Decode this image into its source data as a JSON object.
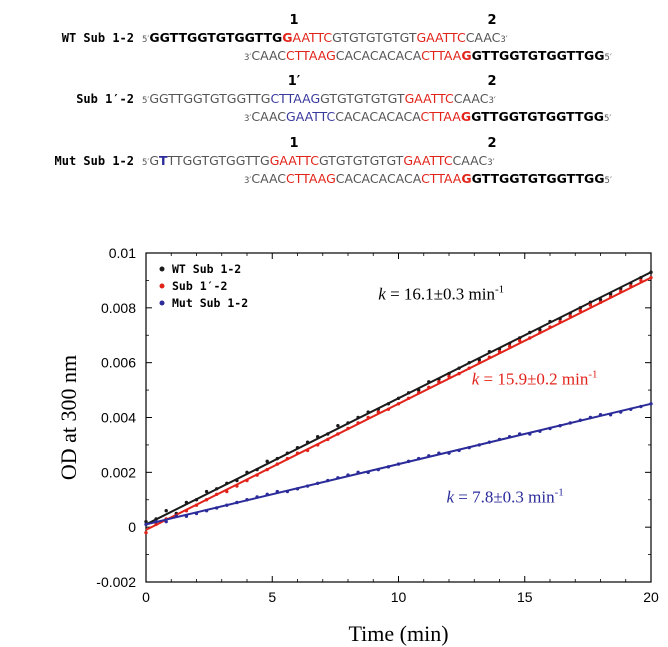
{
  "sequences": [
    {
      "label": "WT Sub 1-2",
      "site1": "1",
      "site2": "2",
      "top": [
        {
          "t": "5′",
          "s": "prime"
        },
        {
          "t": "GGTTGGTGTGGTTG",
          "s": "b"
        },
        {
          "t": "G",
          "s": "rb"
        },
        {
          "t": "AATTC",
          "s": "red"
        },
        {
          "t": "GTGTGTGTGT",
          "s": ""
        },
        {
          "t": "GAATTC",
          "s": "red"
        },
        {
          "t": "CAAC",
          "s": ""
        },
        {
          "t": "3′",
          "s": "prime"
        }
      ],
      "bottom": [
        {
          "t": "3′",
          "s": "prime"
        },
        {
          "t": "CAAC",
          "s": ""
        },
        {
          "t": "CTTAAG",
          "s": "red"
        },
        {
          "t": "CACACACACA",
          "s": ""
        },
        {
          "t": "CTTAA",
          "s": "red"
        },
        {
          "t": "G",
          "s": "rb"
        },
        {
          "t": "GTTGGTGTGGTTGG",
          "s": "b"
        },
        {
          "t": "5′",
          "s": "prime"
        }
      ]
    },
    {
      "label": "Sub 1′-2",
      "site1": "1′",
      "site2": "2",
      "top": [
        {
          "t": "5′",
          "s": "prime"
        },
        {
          "t": "GGTTGGTGTGGTTG",
          "s": ""
        },
        {
          "t": "CTTAAG",
          "s": "blue"
        },
        {
          "t": "GTGTGTGTGT",
          "s": ""
        },
        {
          "t": "GAATTC",
          "s": "red"
        },
        {
          "t": "CAAC",
          "s": ""
        },
        {
          "t": "3′",
          "s": "prime"
        }
      ],
      "bottom": [
        {
          "t": "3′",
          "s": "prime"
        },
        {
          "t": "CAAC",
          "s": ""
        },
        {
          "t": "GAATTC",
          "s": "blue"
        },
        {
          "t": "CACACACACA",
          "s": ""
        },
        {
          "t": "CTTAA",
          "s": "red"
        },
        {
          "t": "G",
          "s": "rb"
        },
        {
          "t": "GTTGGTGTGGTTGG",
          "s": "b"
        },
        {
          "t": "5′",
          "s": "prime"
        }
      ]
    },
    {
      "label": "Mut Sub 1-2",
      "site1": "1",
      "site2": "2",
      "top": [
        {
          "t": "5′",
          "s": "prime"
        },
        {
          "t": "G",
          "s": ""
        },
        {
          "t": "T",
          "s": "bb"
        },
        {
          "t": "TTGGTGTGGTTG",
          "s": ""
        },
        {
          "t": "GAATTC",
          "s": "red"
        },
        {
          "t": "GTGTGTGTGT",
          "s": ""
        },
        {
          "t": "GAATTC",
          "s": "red"
        },
        {
          "t": "CAAC",
          "s": ""
        },
        {
          "t": "3′",
          "s": "prime"
        }
      ],
      "bottom": [
        {
          "t": "3′",
          "s": "prime"
        },
        {
          "t": "CAAC",
          "s": ""
        },
        {
          "t": "CTTAAG",
          "s": "red"
        },
        {
          "t": "CACACACACA",
          "s": ""
        },
        {
          "t": "CTTAA",
          "s": "red"
        },
        {
          "t": "G",
          "s": "rb"
        },
        {
          "t": "GTTGGTGTGGTTGG",
          "s": "b"
        },
        {
          "t": "5′",
          "s": "prime"
        }
      ]
    }
  ],
  "chart_data": {
    "type": "scatter",
    "xlabel": "Time (min)",
    "ylabel": "OD at 300 nm",
    "xlim": [
      0,
      20
    ],
    "ylim": [
      -0.002,
      0.01
    ],
    "xticks": [
      0,
      5,
      10,
      15,
      20
    ],
    "yticks": [
      -0.002,
      0,
      0.002,
      0.004,
      0.006,
      0.008,
      0.01
    ],
    "ytick_labels": [
      "-0.002",
      "0",
      "0.002",
      "0.004",
      "0.006",
      "0.008",
      "0.01"
    ],
    "grid": false,
    "legend_position": "top-left",
    "series": [
      {
        "name": "WT Sub 1-2",
        "color": "#1a1a1a",
        "fit": {
          "x0": 0,
          "y0": 0.0001,
          "x1": 20,
          "y1": 0.0093
        },
        "annotation": {
          "prefix": "k",
          "text": " = 16.1±0.3 min",
          "sup": "-1",
          "color": "#000000",
          "x": 9.2,
          "y": 0.0083
        },
        "points": [
          [
            0.0,
            0.0002
          ],
          [
            0.4,
            0.0003
          ],
          [
            0.8,
            0.0006
          ],
          [
            1.2,
            0.0005
          ],
          [
            1.6,
            0.0009
          ],
          [
            2.0,
            0.001
          ],
          [
            2.4,
            0.0013
          ],
          [
            2.8,
            0.0014
          ],
          [
            3.2,
            0.0016
          ],
          [
            3.6,
            0.0017
          ],
          [
            4.0,
            0.002
          ],
          [
            4.4,
            0.0021
          ],
          [
            4.8,
            0.0024
          ],
          [
            5.2,
            0.0025
          ],
          [
            5.6,
            0.0027
          ],
          [
            6.0,
            0.0029
          ],
          [
            6.4,
            0.0031
          ],
          [
            6.8,
            0.0033
          ],
          [
            7.2,
            0.0034
          ],
          [
            7.6,
            0.0037
          ],
          [
            8.0,
            0.0038
          ],
          [
            8.4,
            0.004
          ],
          [
            8.8,
            0.0042
          ],
          [
            9.2,
            0.0043
          ],
          [
            9.6,
            0.0045
          ],
          [
            10.0,
            0.0047
          ],
          [
            10.4,
            0.0049
          ],
          [
            10.8,
            0.005
          ],
          [
            11.2,
            0.0053
          ],
          [
            11.6,
            0.0054
          ],
          [
            12.0,
            0.0056
          ],
          [
            12.4,
            0.0058
          ],
          [
            12.8,
            0.006
          ],
          [
            13.2,
            0.0061
          ],
          [
            13.6,
            0.0064
          ],
          [
            14.0,
            0.0065
          ],
          [
            14.4,
            0.0067
          ],
          [
            14.8,
            0.0069
          ],
          [
            15.2,
            0.0071
          ],
          [
            15.6,
            0.0072
          ],
          [
            16.0,
            0.0075
          ],
          [
            16.4,
            0.0076
          ],
          [
            16.8,
            0.0078
          ],
          [
            17.2,
            0.008
          ],
          [
            17.6,
            0.0082
          ],
          [
            18.0,
            0.0083
          ],
          [
            18.4,
            0.0085
          ],
          [
            18.8,
            0.0087
          ],
          [
            19.2,
            0.0089
          ],
          [
            19.6,
            0.0091
          ],
          [
            20.0,
            0.0093
          ]
        ]
      },
      {
        "name": "Sub 1′-2",
        "color": "#e2231a",
        "fit": {
          "x0": 0,
          "y0": -0.0001,
          "x1": 20,
          "y1": 0.0091
        },
        "annotation": {
          "prefix": "k",
          "text": " = 15.9±0.2 min",
          "sup": "-1",
          "color": "#e2231a",
          "x": 12.9,
          "y": 0.0052
        },
        "points": [
          [
            0.0,
            -0.0002
          ],
          [
            0.4,
            0.0001
          ],
          [
            0.8,
            0.0003
          ],
          [
            1.2,
            0.0004
          ],
          [
            1.6,
            0.0006
          ],
          [
            2.0,
            0.0008
          ],
          [
            2.4,
            0.001
          ],
          [
            2.8,
            0.0012
          ],
          [
            3.2,
            0.0013
          ],
          [
            3.6,
            0.0015
          ],
          [
            4.0,
            0.0017
          ],
          [
            4.4,
            0.0019
          ],
          [
            4.8,
            0.0021
          ],
          [
            5.2,
            0.0023
          ],
          [
            5.6,
            0.0025
          ],
          [
            6.0,
            0.0027
          ],
          [
            6.4,
            0.0028
          ],
          [
            6.8,
            0.003
          ],
          [
            7.2,
            0.0032
          ],
          [
            7.6,
            0.0034
          ],
          [
            8.0,
            0.0036
          ],
          [
            8.4,
            0.0038
          ],
          [
            8.8,
            0.004
          ],
          [
            9.2,
            0.0042
          ],
          [
            9.6,
            0.0043
          ],
          [
            10.0,
            0.0045
          ],
          [
            10.4,
            0.0047
          ],
          [
            10.8,
            0.0049
          ],
          [
            11.2,
            0.0051
          ],
          [
            11.6,
            0.0053
          ],
          [
            12.0,
            0.0055
          ],
          [
            12.4,
            0.0056
          ],
          [
            12.8,
            0.0058
          ],
          [
            13.2,
            0.006
          ],
          [
            13.6,
            0.0062
          ],
          [
            14.0,
            0.0064
          ],
          [
            14.4,
            0.0066
          ],
          [
            14.8,
            0.0068
          ],
          [
            15.2,
            0.0069
          ],
          [
            15.6,
            0.0071
          ],
          [
            16.0,
            0.0073
          ],
          [
            16.4,
            0.0075
          ],
          [
            16.8,
            0.0077
          ],
          [
            17.2,
            0.0079
          ],
          [
            17.6,
            0.0081
          ],
          [
            18.0,
            0.0082
          ],
          [
            18.4,
            0.0084
          ],
          [
            18.8,
            0.0086
          ],
          [
            19.2,
            0.0088
          ],
          [
            19.6,
            0.009
          ],
          [
            20.0,
            0.0091
          ]
        ]
      },
      {
        "name": "Mut Sub 1-2",
        "color": "#2b2b9a",
        "fit": {
          "x0": 0,
          "y0": 0.0001,
          "x1": 20,
          "y1": 0.0045
        },
        "annotation": {
          "prefix": "k",
          "text": " = 7.8±0.3 min",
          "sup": "-1",
          "color": "#2b2b9a",
          "x": 11.9,
          "y": 0.0009
        },
        "points": [
          [
            0.0,
            0.0001
          ],
          [
            0.4,
            0.0002
          ],
          [
            0.8,
            0.0002
          ],
          [
            1.2,
            0.0004
          ],
          [
            1.6,
            0.0004
          ],
          [
            2.0,
            0.0005
          ],
          [
            2.4,
            0.0006
          ],
          [
            2.8,
            0.0007
          ],
          [
            3.2,
            0.0008
          ],
          [
            3.6,
            0.0009
          ],
          [
            4.0,
            0.001
          ],
          [
            4.4,
            0.0011
          ],
          [
            4.8,
            0.0012
          ],
          [
            5.2,
            0.0013
          ],
          [
            5.6,
            0.0013
          ],
          [
            6.0,
            0.0014
          ],
          [
            6.4,
            0.0015
          ],
          [
            6.8,
            0.0016
          ],
          [
            7.2,
            0.0017
          ],
          [
            7.6,
            0.0018
          ],
          [
            8.0,
            0.0019
          ],
          [
            8.4,
            0.002
          ],
          [
            8.8,
            0.002
          ],
          [
            9.2,
            0.0021
          ],
          [
            9.6,
            0.0022
          ],
          [
            10.0,
            0.0023
          ],
          [
            10.4,
            0.0024
          ],
          [
            10.8,
            0.0025
          ],
          [
            11.2,
            0.0026
          ],
          [
            11.6,
            0.0027
          ],
          [
            12.0,
            0.0027
          ],
          [
            12.4,
            0.0028
          ],
          [
            12.8,
            0.0029
          ],
          [
            13.2,
            0.003
          ],
          [
            13.6,
            0.0031
          ],
          [
            14.0,
            0.0032
          ],
          [
            14.4,
            0.0033
          ],
          [
            14.8,
            0.0034
          ],
          [
            15.2,
            0.0034
          ],
          [
            15.6,
            0.0035
          ],
          [
            16.0,
            0.0036
          ],
          [
            16.4,
            0.0037
          ],
          [
            16.8,
            0.0038
          ],
          [
            17.2,
            0.0039
          ],
          [
            17.6,
            0.004
          ],
          [
            18.0,
            0.0041
          ],
          [
            18.4,
            0.0041
          ],
          [
            18.8,
            0.0042
          ],
          [
            19.2,
            0.0043
          ],
          [
            19.6,
            0.0044
          ],
          [
            20.0,
            0.0045
          ]
        ]
      }
    ]
  }
}
